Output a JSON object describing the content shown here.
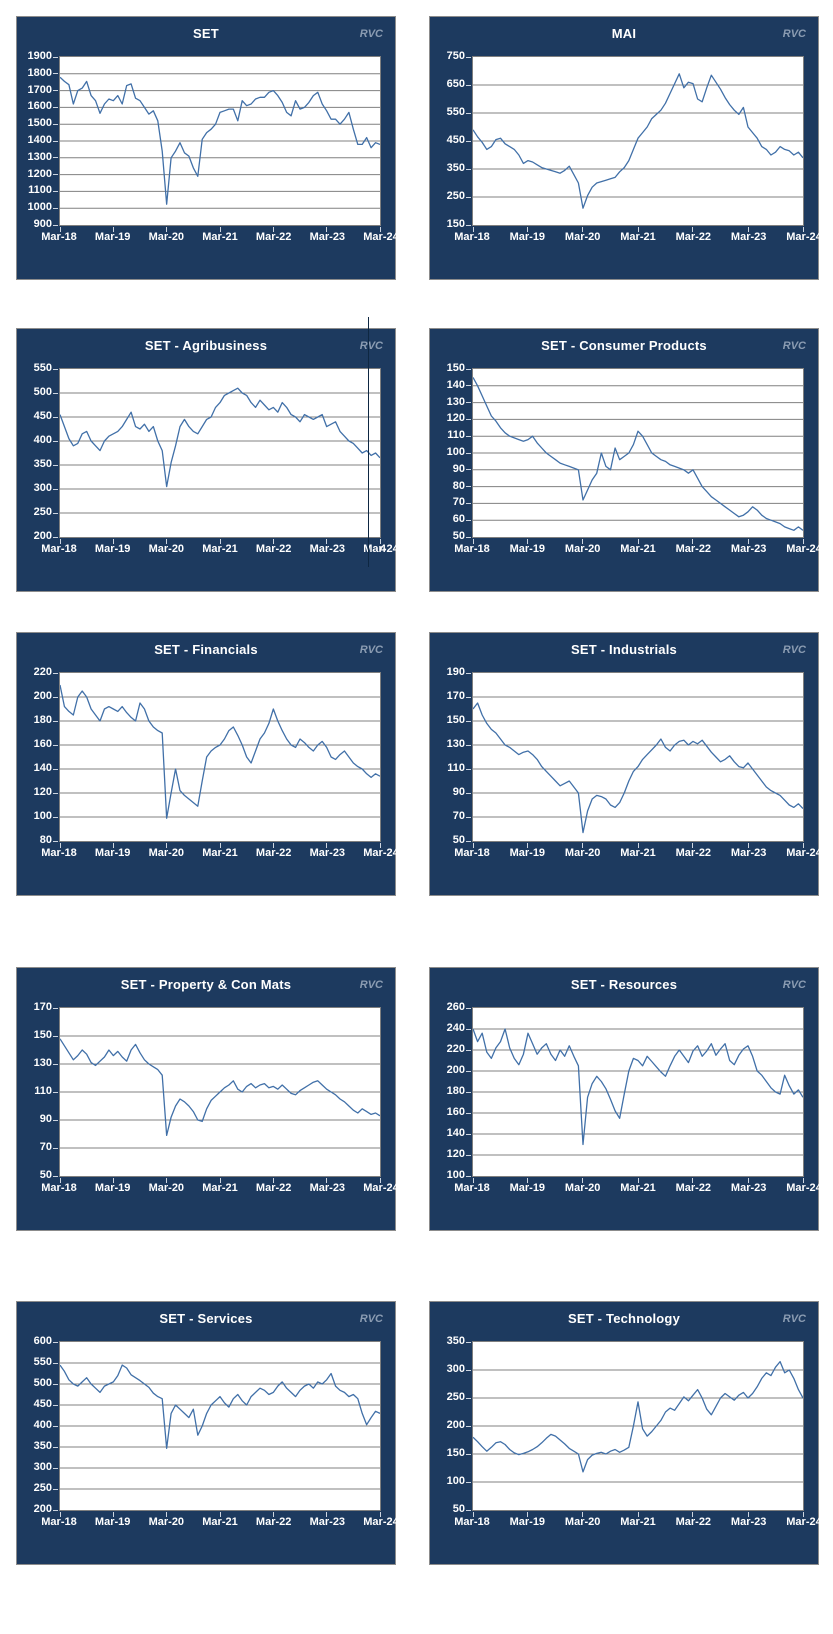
{
  "branding": {
    "logo": "RVC"
  },
  "artifact": {
    "stray_text": "4"
  },
  "colors": {
    "card_background": "#1d3a5f",
    "card_border": "#8c8c8c",
    "plot_background": "#ffffff",
    "plot_border": "#7f7f7f",
    "gridline": "#808080",
    "series_line": "#4170a8",
    "title_text": "#ffffff",
    "axis_text": "#ffffff",
    "logo_text": "#8b9cb2"
  },
  "chart_data": [
    {
      "type": "line",
      "title": "SET",
      "ylim": [
        900,
        1900
      ],
      "ytick_step": 100,
      "grid": "horizontal",
      "legend": "none",
      "x_labels": [
        "Mar-18",
        "Mar-19",
        "Mar-20",
        "Mar-21",
        "Mar-22",
        "Mar-23",
        "Mar-24"
      ],
      "series_name": "SET Index",
      "values": [
        1780,
        1755,
        1735,
        1620,
        1700,
        1715,
        1755,
        1670,
        1640,
        1565,
        1620,
        1650,
        1640,
        1670,
        1620,
        1730,
        1740,
        1655,
        1640,
        1600,
        1560,
        1580,
        1520,
        1340,
        1024,
        1300,
        1340,
        1390,
        1330,
        1310,
        1240,
        1190,
        1410,
        1450,
        1470,
        1500,
        1570,
        1580,
        1590,
        1590,
        1520,
        1640,
        1610,
        1620,
        1650,
        1660,
        1660,
        1690,
        1700,
        1670,
        1630,
        1570,
        1550,
        1640,
        1590,
        1600,
        1630,
        1670,
        1690,
        1620,
        1580,
        1530,
        1530,
        1500,
        1530,
        1570,
        1470,
        1380,
        1380,
        1420,
        1360,
        1390,
        1380
      ]
    },
    {
      "type": "line",
      "title": "MAI",
      "ylim": [
        150,
        750
      ],
      "ytick_step": 100,
      "grid": "horizontal",
      "legend": "none",
      "x_labels": [
        "Mar-18",
        "Mar-19",
        "Mar-20",
        "Mar-21",
        "Mar-22",
        "Mar-23",
        "Mar-24"
      ],
      "series_name": "MAI Index",
      "values": [
        490,
        465,
        445,
        420,
        430,
        455,
        460,
        440,
        430,
        420,
        400,
        370,
        380,
        375,
        365,
        355,
        350,
        345,
        340,
        335,
        345,
        360,
        330,
        300,
        210,
        255,
        285,
        300,
        305,
        310,
        315,
        320,
        340,
        355,
        380,
        420,
        460,
        480,
        500,
        530,
        545,
        560,
        585,
        620,
        655,
        690,
        640,
        660,
        655,
        600,
        590,
        640,
        685,
        660,
        635,
        605,
        580,
        560,
        545,
        570,
        500,
        480,
        460,
        430,
        420,
        400,
        410,
        430,
        420,
        415,
        400,
        410,
        390
      ]
    },
    {
      "type": "line",
      "title": "SET - Agribusiness",
      "ylim": [
        200,
        550
      ],
      "ytick_step": 50,
      "grid": "horizontal",
      "legend": "none",
      "x_labels": [
        "Mar-18",
        "Mar-19",
        "Mar-20",
        "Mar-21",
        "Mar-22",
        "Mar-23",
        "Mar-24"
      ],
      "series_name": "SET Agribusiness",
      "values": [
        455,
        430,
        405,
        390,
        395,
        415,
        420,
        400,
        390,
        380,
        400,
        410,
        415,
        420,
        430,
        445,
        460,
        430,
        425,
        435,
        420,
        430,
        400,
        380,
        305,
        355,
        390,
        430,
        445,
        430,
        420,
        415,
        430,
        445,
        450,
        470,
        480,
        495,
        500,
        505,
        510,
        500,
        495,
        480,
        470,
        485,
        475,
        465,
        470,
        460,
        480,
        470,
        455,
        450,
        440,
        455,
        450,
        445,
        450,
        455,
        430,
        435,
        440,
        420,
        410,
        400,
        395,
        385,
        375,
        380,
        370,
        375,
        365
      ]
    },
    {
      "type": "line",
      "title": "SET - Consumer Products",
      "ylim": [
        50,
        150
      ],
      "ytick_step": 10,
      "grid": "horizontal",
      "legend": "none",
      "x_labels": [
        "Mar-18",
        "Mar-19",
        "Mar-20",
        "Mar-21",
        "Mar-22",
        "Mar-23",
        "Mar-24"
      ],
      "series_name": "SET Consumer Products",
      "values": [
        145,
        140,
        134,
        128,
        122,
        119,
        115,
        112,
        110,
        109,
        108,
        107,
        108,
        110,
        106,
        103,
        100,
        98,
        96,
        94,
        93,
        92,
        91,
        90,
        72,
        78,
        84,
        88,
        100,
        92,
        90,
        103,
        96,
        98,
        100,
        105,
        113,
        110,
        105,
        100,
        98,
        96,
        95,
        93,
        92,
        91,
        90,
        88,
        90,
        85,
        80,
        77,
        74,
        72,
        70,
        68,
        66,
        64,
        62,
        63,
        65,
        68,
        66,
        63,
        61,
        60,
        59,
        58,
        56,
        55,
        54,
        56,
        54
      ]
    },
    {
      "type": "line",
      "title": "SET - Financials",
      "ylim": [
        80,
        220
      ],
      "ytick_step": 20,
      "grid": "horizontal",
      "legend": "none",
      "x_labels": [
        "Mar-18",
        "Mar-19",
        "Mar-20",
        "Mar-21",
        "Mar-22",
        "Mar-23",
        "Mar-24"
      ],
      "series_name": "SET Financials",
      "values": [
        210,
        192,
        188,
        185,
        200,
        205,
        200,
        190,
        185,
        180,
        190,
        192,
        190,
        188,
        192,
        187,
        183,
        180,
        195,
        190,
        180,
        175,
        172,
        170,
        99,
        120,
        140,
        122,
        118,
        115,
        112,
        109,
        130,
        150,
        155,
        158,
        160,
        165,
        172,
        175,
        168,
        160,
        150,
        145,
        155,
        165,
        170,
        178,
        190,
        180,
        172,
        165,
        160,
        158,
        165,
        162,
        158,
        155,
        160,
        163,
        158,
        150,
        148,
        152,
        155,
        150,
        145,
        142,
        140,
        136,
        133,
        136,
        134
      ]
    },
    {
      "type": "line",
      "title": "SET - Industrials",
      "ylim": [
        50,
        190
      ],
      "ytick_step": 20,
      "grid": "horizontal",
      "legend": "none",
      "x_labels": [
        "Mar-18",
        "Mar-19",
        "Mar-20",
        "Mar-21",
        "Mar-22",
        "Mar-23",
        "Mar-24"
      ],
      "series_name": "SET Industrials",
      "values": [
        160,
        165,
        155,
        148,
        143,
        140,
        135,
        130,
        128,
        125,
        122,
        124,
        125,
        122,
        118,
        112,
        108,
        104,
        100,
        96,
        98,
        100,
        95,
        90,
        57,
        75,
        85,
        88,
        87,
        85,
        80,
        78,
        82,
        90,
        100,
        108,
        112,
        118,
        122,
        126,
        130,
        135,
        128,
        125,
        130,
        133,
        134,
        130,
        133,
        131,
        134,
        129,
        124,
        120,
        116,
        118,
        121,
        116,
        112,
        111,
        115,
        110,
        105,
        100,
        95,
        92,
        90,
        88,
        84,
        80,
        78,
        81,
        77
      ]
    },
    {
      "type": "line",
      "title": "SET - Property & Con Mats",
      "ylim": [
        50,
        170
      ],
      "ytick_step": 20,
      "grid": "horizontal",
      "legend": "none",
      "x_labels": [
        "Mar-18",
        "Mar-19",
        "Mar-20",
        "Mar-21",
        "Mar-22",
        "Mar-23",
        "Mar-24"
      ],
      "series_name": "SET Property & Construction Materials",
      "values": [
        148,
        143,
        138,
        133,
        136,
        140,
        137,
        131,
        129,
        132,
        135,
        140,
        136,
        139,
        135,
        132,
        140,
        144,
        138,
        133,
        130,
        128,
        126,
        122,
        79,
        92,
        100,
        105,
        103,
        100,
        96,
        90,
        89,
        98,
        104,
        107,
        110,
        113,
        115,
        118,
        112,
        110,
        114,
        116,
        113,
        115,
        116,
        113,
        114,
        112,
        115,
        112,
        109,
        108,
        111,
        113,
        115,
        117,
        118,
        115,
        112,
        110,
        108,
        105,
        103,
        100,
        97,
        95,
        98,
        96,
        94,
        95,
        93
      ]
    },
    {
      "type": "line",
      "title": "SET - Resources",
      "ylim": [
        100,
        260
      ],
      "ytick_step": 20,
      "grid": "horizontal",
      "legend": "none",
      "x_labels": [
        "Mar-18",
        "Mar-19",
        "Mar-20",
        "Mar-21",
        "Mar-22",
        "Mar-23",
        "Mar-24"
      ],
      "series_name": "SET Resources",
      "values": [
        240,
        228,
        236,
        218,
        212,
        222,
        228,
        240,
        222,
        212,
        206,
        216,
        236,
        226,
        216,
        222,
        226,
        216,
        210,
        220,
        214,
        224,
        214,
        205,
        130,
        175,
        188,
        195,
        190,
        183,
        173,
        162,
        155,
        178,
        200,
        212,
        210,
        205,
        214,
        209,
        204,
        199,
        195,
        205,
        214,
        220,
        214,
        208,
        219,
        224,
        214,
        219,
        226,
        215,
        221,
        226,
        210,
        206,
        215,
        221,
        224,
        214,
        200,
        196,
        190,
        184,
        180,
        178,
        196,
        186,
        178,
        182,
        175
      ]
    },
    {
      "type": "line",
      "title": "SET - Services",
      "ylim": [
        200,
        600
      ],
      "ytick_step": 50,
      "grid": "horizontal",
      "legend": "none",
      "x_labels": [
        "Mar-18",
        "Mar-19",
        "Mar-20",
        "Mar-21",
        "Mar-22",
        "Mar-23",
        "Mar-24"
      ],
      "series_name": "SET Services",
      "values": [
        545,
        530,
        510,
        500,
        495,
        505,
        515,
        500,
        490,
        480,
        495,
        500,
        505,
        520,
        545,
        538,
        522,
        515,
        508,
        500,
        492,
        478,
        470,
        465,
        347,
        430,
        450,
        440,
        430,
        420,
        440,
        378,
        400,
        430,
        450,
        460,
        470,
        455,
        445,
        465,
        475,
        460,
        450,
        470,
        480,
        490,
        485,
        475,
        480,
        495,
        505,
        490,
        480,
        470,
        485,
        495,
        500,
        490,
        505,
        500,
        510,
        525,
        495,
        485,
        480,
        470,
        475,
        465,
        430,
        403,
        420,
        435,
        430
      ]
    },
    {
      "type": "line",
      "title": "SET - Technology",
      "ylim": [
        50,
        350
      ],
      "ytick_step": 50,
      "grid": "horizontal",
      "legend": "none",
      "x_labels": [
        "Mar-18",
        "Mar-19",
        "Mar-20",
        "Mar-21",
        "Mar-22",
        "Mar-23",
        "Mar-24"
      ],
      "series_name": "SET Technology",
      "values": [
        180,
        172,
        163,
        155,
        162,
        170,
        172,
        167,
        158,
        152,
        149,
        151,
        154,
        158,
        163,
        170,
        178,
        185,
        182,
        175,
        168,
        160,
        155,
        150,
        118,
        140,
        148,
        151,
        153,
        150,
        155,
        158,
        153,
        157,
        162,
        200,
        243,
        195,
        182,
        190,
        200,
        210,
        225,
        232,
        228,
        240,
        252,
        245,
        255,
        265,
        250,
        230,
        220,
        235,
        250,
        258,
        252,
        246,
        255,
        260,
        250,
        258,
        270,
        285,
        295,
        290,
        305,
        315,
        295,
        300,
        285,
        265,
        250
      ]
    }
  ]
}
